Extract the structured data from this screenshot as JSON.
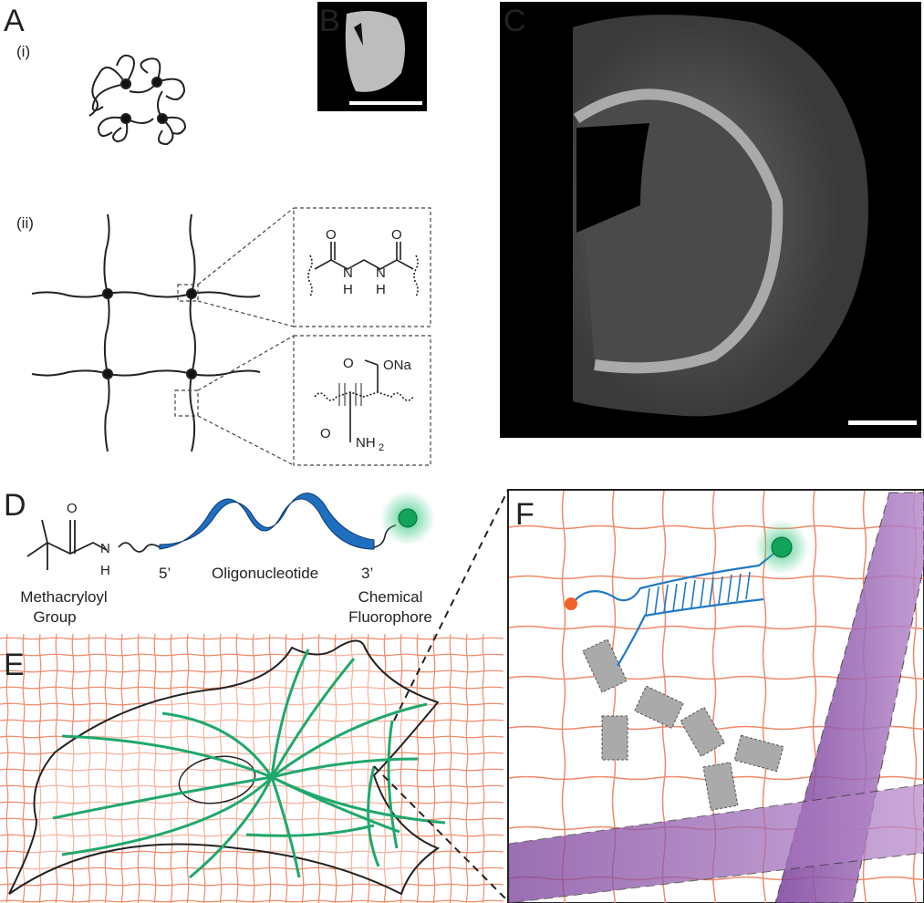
{
  "panel_labels": {
    "a": "A",
    "b": "B",
    "c": "C",
    "d": "D",
    "e": "E",
    "f": "F"
  },
  "panel_a": {
    "sublabel_i": "(i)",
    "sublabel_ii": "(ii)",
    "crosslinker": {
      "o1": "O",
      "n1": "N",
      "h1": "H",
      "n2": "N",
      "h2": "H",
      "o2": "O"
    },
    "acrylate": {
      "o1": "O",
      "ona": "ONa",
      "o2": "O",
      "nh": "NH",
      "sub": "2"
    }
  },
  "panel_d": {
    "carbonyl_o": "O",
    "amide_n": "N",
    "amide_h": "H",
    "five_prime": "5’",
    "oligo": "Oligonucleotide",
    "three_prime": "3’",
    "methacryloyl": [
      "Methacryloyl",
      "Group"
    ],
    "fluorophore": [
      "Chemical",
      "Fluorophore"
    ]
  }
}
